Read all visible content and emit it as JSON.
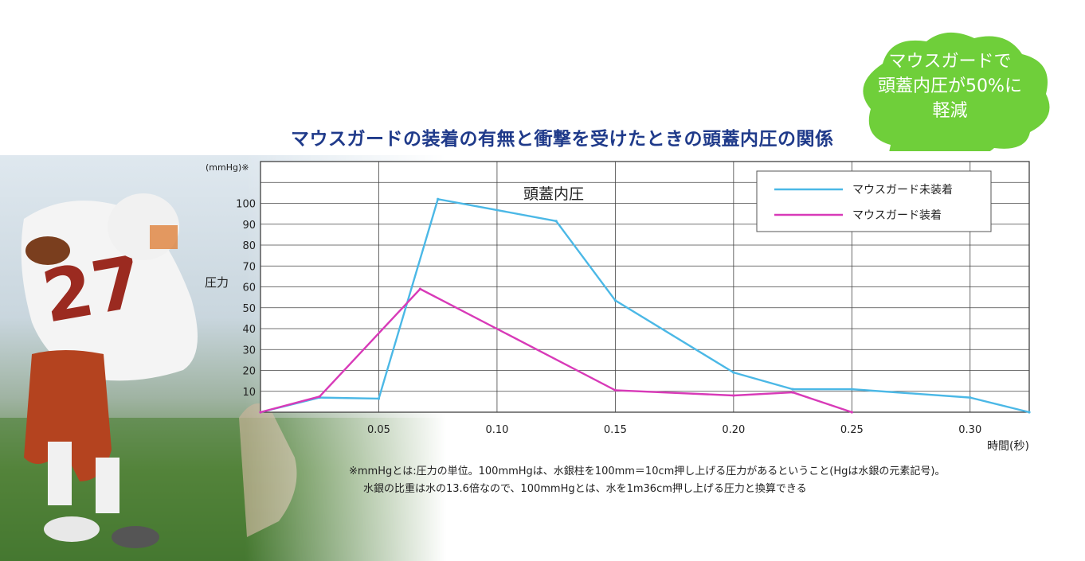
{
  "callout": {
    "lines": [
      "マウスガードで",
      "頭蓋内圧が50%に",
      "軽減"
    ],
    "color": "#6fcf3a"
  },
  "footnote": {
    "line1": "※mmHgとは:圧力の単位。100mmHgは、水銀柱を100mm＝10cm押し上げる圧力があるということ(Hgは水銀の元素記号)。",
    "line2": "水銀の比重は水の13.6倍なので、100mmHgとは、水を1m36cm押し上げる圧力と換算できる"
  },
  "chart_data": {
    "type": "line",
    "title": "マウスガードの装着の有無と衝撃を受けたときの頭蓋内圧の関係",
    "subtitle": "頭蓋内圧",
    "xlabel": "時間(秒)",
    "ylabel": "圧力",
    "yunit": "(mmHg)※",
    "xlim": [
      0,
      0.325
    ],
    "ylim": [
      0,
      120
    ],
    "x_ticks": [
      0.05,
      0.1,
      0.15,
      0.2,
      0.25,
      0.3
    ],
    "x_tick_labels": [
      "0.05",
      "0.10",
      "0.15",
      "0.20",
      "0.25",
      "0.30"
    ],
    "y_ticks": [
      10,
      20,
      30,
      40,
      50,
      60,
      70,
      80,
      90,
      100
    ],
    "y_tick_labels": [
      "10",
      "20",
      "30",
      "40",
      "50",
      "60",
      "70",
      "80",
      "90",
      "100"
    ],
    "grid": true,
    "legend_position": "top-right",
    "series": [
      {
        "name": "マウスガード未装着",
        "color": "#4bb8e6",
        "x": [
          0,
          0.025,
          0.05,
          0.075,
          0.125,
          0.15,
          0.2,
          0.225,
          0.25,
          0.3,
          0.325
        ],
        "y": [
          0,
          7,
          6.5,
          102,
          91.5,
          53.5,
          19,
          11,
          11,
          7,
          0
        ]
      },
      {
        "name": "マウスガード装着",
        "color": "#d83ab8",
        "x": [
          0,
          0.025,
          0.0675,
          0.15,
          0.2,
          0.225,
          0.25
        ],
        "y": [
          0,
          7.5,
          59,
          10.5,
          8,
          9.5,
          0
        ]
      }
    ]
  }
}
